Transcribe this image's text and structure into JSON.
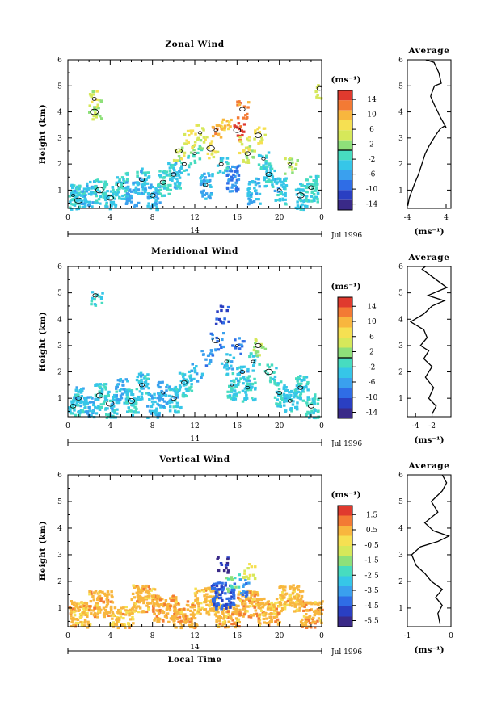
{
  "common": {
    "x_ticks": [
      "0",
      "4",
      "8",
      "12",
      "16",
      "20",
      "0"
    ],
    "y_ticks": [
      "1",
      "2",
      "3",
      "4",
      "5",
      "6"
    ],
    "ylabel": "Height (km)",
    "day_label": "14",
    "month_label": "Jul 1996",
    "xlabel": "Local Time",
    "avg_title": "Average",
    "avg_unit": "(ms⁻¹)",
    "cb_unit": "(ms⁻¹)"
  },
  "colors": {
    "colormap": [
      "#3a2a88",
      "#2a3fc2",
      "#2f6de6",
      "#3aa0ee",
      "#36c6e8",
      "#47dcc0",
      "#8ee07a",
      "#d6e85a",
      "#f6e052",
      "#f8b63e",
      "#f37a34",
      "#e03a2e"
    ],
    "contour": "#000000",
    "axis": "#000000"
  },
  "chart_data": [
    {
      "type": "heatmap",
      "title": "Zonal Wind",
      "xlabel": "",
      "ylabel": "Height (km)",
      "xlim": [
        0,
        24
      ],
      "ylim": [
        0.3,
        6
      ],
      "colorbar_ticks": [
        "14",
        "10",
        "6",
        "2",
        "-2",
        "-6",
        "-10",
        "-14"
      ],
      "colorbar_range": [
        -16,
        16
      ],
      "colorbar_line": 0,
      "note_values": "cells sampled approximately: [time_h, height_km, value_ms-1]",
      "cells": [
        [
          0.5,
          0.8,
          -3
        ],
        [
          1,
          0.6,
          -4
        ],
        [
          2,
          0.9,
          -5
        ],
        [
          3,
          1.0,
          -2
        ],
        [
          4,
          0.7,
          -4
        ],
        [
          5,
          1.2,
          -3
        ],
        [
          6,
          0.9,
          -6
        ],
        [
          7,
          1.4,
          -4
        ],
        [
          8,
          0.8,
          -5
        ],
        [
          9,
          1.3,
          -2
        ],
        [
          10,
          1.6,
          -4
        ],
        [
          11,
          2.0,
          -3
        ],
        [
          12,
          2.4,
          0
        ],
        [
          12.5,
          3.2,
          4
        ],
        [
          13,
          1.2,
          -6
        ],
        [
          13.5,
          2.6,
          6
        ],
        [
          14,
          3.3,
          10
        ],
        [
          14.5,
          2.0,
          -4
        ],
        [
          15,
          3.4,
          8
        ],
        [
          15.5,
          1.5,
          -8
        ],
        [
          16,
          3.3,
          14
        ],
        [
          16.5,
          2.8,
          6
        ],
        [
          17,
          2.4,
          2
        ],
        [
          17.5,
          1.0,
          -5
        ],
        [
          18,
          3.1,
          6
        ],
        [
          18.5,
          2.2,
          -2
        ],
        [
          19,
          1.6,
          -3
        ],
        [
          20,
          1.0,
          -4
        ],
        [
          21,
          2.0,
          2
        ],
        [
          22,
          0.8,
          -3
        ],
        [
          23,
          1.1,
          -2
        ],
        [
          2.5,
          4.5,
          4
        ],
        [
          2.5,
          4.0,
          2
        ],
        [
          16.5,
          4.1,
          12
        ],
        [
          23.8,
          4.9,
          4
        ],
        [
          10.5,
          2.5,
          4
        ],
        [
          11.5,
          3.0,
          6
        ]
      ],
      "contour_level": 0
    },
    {
      "type": "heatmap",
      "title": "Meridional Wind",
      "xlabel": "",
      "ylabel": "Height (km)",
      "xlim": [
        0,
        24
      ],
      "ylim": [
        0.3,
        6
      ],
      "colorbar_ticks": [
        "14",
        "10",
        "6",
        "2",
        "-2",
        "-6",
        "-10",
        "-14"
      ],
      "colorbar_range": [
        -16,
        16
      ],
      "colorbar_line": 0,
      "cells": [
        [
          0.5,
          0.7,
          -3
        ],
        [
          1,
          1.0,
          -4
        ],
        [
          2,
          0.6,
          -5
        ],
        [
          3,
          1.1,
          -3
        ],
        [
          4,
          0.8,
          -4
        ],
        [
          5,
          1.3,
          -5
        ],
        [
          6,
          0.9,
          -3
        ],
        [
          7,
          1.5,
          -4
        ],
        [
          8,
          0.7,
          -5
        ],
        [
          9,
          1.2,
          -6
        ],
        [
          10,
          1.0,
          -4
        ],
        [
          11,
          1.6,
          -3
        ],
        [
          12,
          2.0,
          -5
        ],
        [
          13,
          2.6,
          -7
        ],
        [
          14,
          3.2,
          -8
        ],
        [
          14.5,
          4.2,
          -12
        ],
        [
          15,
          2.4,
          -4
        ],
        [
          15.5,
          1.5,
          -3
        ],
        [
          16,
          3.0,
          -9
        ],
        [
          16.5,
          2.0,
          -4
        ],
        [
          17,
          1.4,
          -3
        ],
        [
          17.5,
          2.4,
          -4
        ],
        [
          18,
          3.0,
          2
        ],
        [
          19,
          2.0,
          -2
        ],
        [
          20,
          1.2,
          -3
        ],
        [
          21,
          0.9,
          -4
        ],
        [
          22,
          1.4,
          -3
        ],
        [
          23,
          0.7,
          -2
        ],
        [
          2.6,
          4.9,
          -2
        ]
      ],
      "contour_level": 0
    },
    {
      "type": "heatmap",
      "title": "Vertical Wind",
      "xlabel": "Local Time",
      "ylabel": "Height (km)",
      "xlim": [
        0,
        24
      ],
      "ylim": [
        0.3,
        6
      ],
      "colorbar_ticks": [
        "1.5",
        "0.5",
        "-0.5",
        "-1.5",
        "-2.5",
        "-3.5",
        "-4.5",
        "-5.5"
      ],
      "colorbar_range": [
        -6,
        2
      ],
      "colorbar_line": null,
      "cells": [
        [
          1,
          0.8,
          0.3
        ],
        [
          3,
          1.2,
          0.4
        ],
        [
          5,
          0.6,
          0.2
        ],
        [
          7,
          1.4,
          0.3
        ],
        [
          9,
          1.0,
          0.5
        ],
        [
          11,
          0.8,
          0.4
        ],
        [
          13,
          1.3,
          0.2
        ],
        [
          15,
          0.7,
          0.3
        ],
        [
          17,
          1.2,
          0.4
        ],
        [
          19,
          0.9,
          0.3
        ],
        [
          21,
          1.4,
          0.2
        ],
        [
          23,
          0.8,
          0.4
        ],
        [
          14.5,
          2.6,
          -5.5
        ],
        [
          14.6,
          1.5,
          -4.5
        ],
        [
          15.5,
          2.0,
          -2.0
        ],
        [
          16.5,
          1.8,
          -4
        ],
        [
          17,
          2.4,
          -1
        ]
      ]
    },
    {
      "type": "line",
      "title": "Average",
      "xlabel": "(ms⁻¹)",
      "xlim": [
        -4,
        5
      ],
      "ylim": [
        0.3,
        6
      ],
      "x_ticks": [
        "-4",
        "4"
      ],
      "y_ticks": [
        "1",
        "2",
        "3",
        "4",
        "5",
        "6"
      ],
      "points": [
        [
          -3.9,
          0.4
        ],
        [
          -3.6,
          0.7
        ],
        [
          -3.0,
          1.0
        ],
        [
          -2.4,
          1.3
        ],
        [
          -1.7,
          1.6
        ],
        [
          -1.0,
          2.0
        ],
        [
          -0.3,
          2.4
        ],
        [
          0.5,
          2.7
        ],
        [
          1.5,
          3.0
        ],
        [
          2.2,
          3.2
        ],
        [
          2.8,
          3.35
        ],
        [
          3.6,
          3.45
        ],
        [
          4.0,
          3.4
        ],
        [
          2.8,
          3.8
        ],
        [
          1.5,
          4.3
        ],
        [
          0.8,
          4.6
        ],
        [
          1.6,
          5.0
        ],
        [
          3.0,
          5.1
        ],
        [
          2.5,
          5.5
        ],
        [
          1.5,
          5.9
        ],
        [
          -0.2,
          6.0
        ]
      ]
    },
    {
      "type": "line",
      "title": "Average",
      "xlabel": "(ms⁻¹)",
      "xlim": [
        -5,
        0.3
      ],
      "ylim": [
        0.3,
        6
      ],
      "x_ticks": [
        "-4",
        "-2"
      ],
      "y_ticks": [
        "1",
        "2",
        "3",
        "4",
        "5",
        "6"
      ],
      "points": [
        [
          -2.0,
          0.4
        ],
        [
          -1.5,
          0.7
        ],
        [
          -2.4,
          1.0
        ],
        [
          -1.8,
          1.4
        ],
        [
          -2.8,
          1.8
        ],
        [
          -2.0,
          2.2
        ],
        [
          -3.0,
          2.5
        ],
        [
          -2.4,
          2.8
        ],
        [
          -3.4,
          3.0
        ],
        [
          -2.6,
          3.3
        ],
        [
          -3.0,
          3.6
        ],
        [
          -4.6,
          3.9
        ],
        [
          -3.0,
          4.2
        ],
        [
          -2.0,
          4.5
        ],
        [
          -0.5,
          4.7
        ],
        [
          -2.5,
          4.9
        ],
        [
          -1.0,
          5.1
        ],
        [
          -0.2,
          5.2
        ],
        [
          -1.5,
          5.5
        ],
        [
          -3.2,
          5.9
        ],
        [
          -2.8,
          6.0
        ]
      ]
    },
    {
      "type": "line",
      "title": "Average",
      "xlabel": "(ms⁻¹)",
      "xlim": [
        -1,
        0
      ],
      "ylim": [
        0.3,
        6
      ],
      "x_ticks": [
        "-1",
        "0"
      ],
      "y_ticks": [
        "1",
        "2",
        "3",
        "4",
        "5",
        "6"
      ],
      "points": [
        [
          -0.25,
          0.4
        ],
        [
          -0.3,
          0.8
        ],
        [
          -0.2,
          1.1
        ],
        [
          -0.35,
          1.4
        ],
        [
          -0.2,
          1.7
        ],
        [
          -0.45,
          2.0
        ],
        [
          -0.6,
          2.3
        ],
        [
          -0.8,
          2.6
        ],
        [
          -0.9,
          3.0
        ],
        [
          -0.7,
          3.3
        ],
        [
          -0.3,
          3.5
        ],
        [
          -0.05,
          3.7
        ],
        [
          -0.4,
          3.9
        ],
        [
          -0.6,
          4.2
        ],
        [
          -0.3,
          4.6
        ],
        [
          -0.45,
          5.0
        ],
        [
          -0.2,
          5.4
        ],
        [
          -0.1,
          5.7
        ],
        [
          -0.2,
          6.0
        ]
      ]
    }
  ]
}
